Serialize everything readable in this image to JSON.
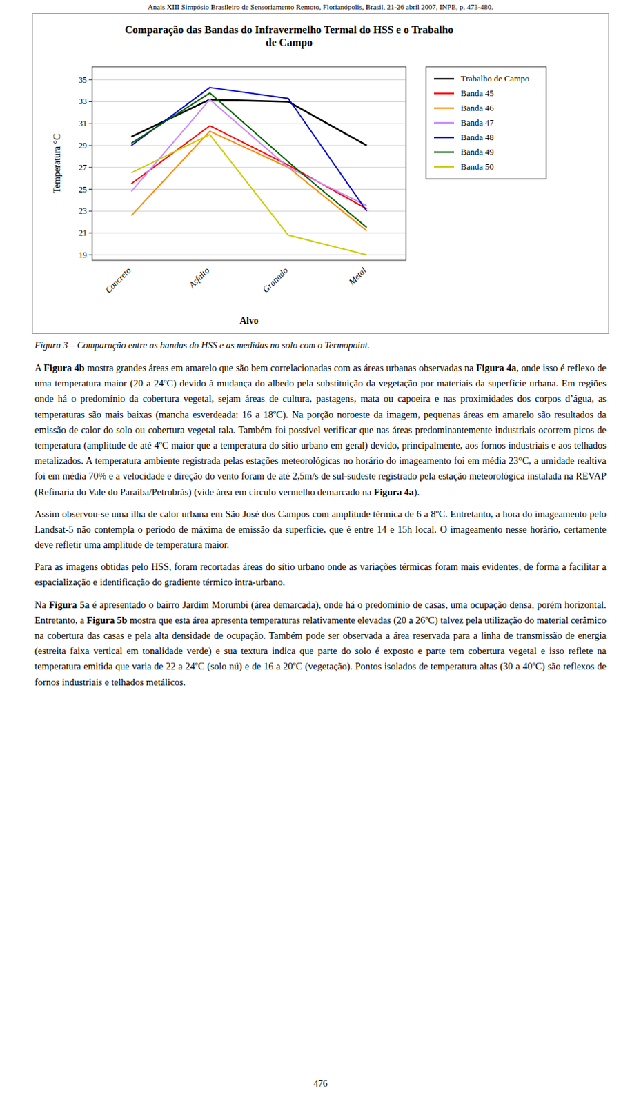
{
  "chart_data": {
    "type": "line",
    "title": "Comparação das Bandas do Infravermelho Termal do HSS e o Trabalho\nde Campo",
    "xlabel": "Alvo",
    "ylabel": "Temperatura °C",
    "categories": [
      "Concreto",
      "Asfalto",
      "Granado",
      "Metal"
    ],
    "series": [
      {
        "name": "Trabalho de Campo",
        "color": "#000000",
        "values": [
          29.8,
          33.2,
          33.0,
          29.0
        ]
      },
      {
        "name": "Banda 45",
        "color": "#FF0000",
        "values": [
          25.5,
          30.8,
          27.2,
          23.2
        ]
      },
      {
        "name": "Banda 46",
        "color": "#FF8C00",
        "values": [
          22.6,
          30.3,
          27.0,
          21.2
        ]
      },
      {
        "name": "Banda 47",
        "color": "#CC88FF",
        "values": [
          24.8,
          33.2,
          27.0,
          23.5
        ]
      },
      {
        "name": "Banda 48",
        "color": "#0000CC",
        "values": [
          29.0,
          34.3,
          33.3,
          23.0
        ]
      },
      {
        "name": "Banda 49",
        "color": "#006400",
        "values": [
          29.2,
          33.8,
          27.5,
          21.5
        ]
      },
      {
        "name": "Banda 50",
        "color": "#CCCC00",
        "values": [
          26.5,
          30.0,
          20.8,
          19.0
        ]
      }
    ],
    "ylim": [
      18.5,
      36.2
    ],
    "yticks": [
      19,
      21,
      23,
      25,
      27,
      29,
      31,
      33,
      35
    ],
    "grid": true,
    "legend": "right"
  },
  "header": "Anais XIII Simpósio Brasileiro de Sensoriamento Remoto, Florianópolis, Brasil, 21-26 abril 2007, INPE, p. 473-480.",
  "caption": "Figura 3 – Comparação entre as bandas do HSS e as medidas no solo com o Termopoint.",
  "paragraphs": [
    [
      {
        "text": "A ",
        "bold": false
      },
      {
        "text": "Figura 4b",
        "bold": true
      },
      {
        "text": " mostra grandes áreas em amarelo que são bem correlacionadas com as áreas urbanas observadas na ",
        "bold": false
      },
      {
        "text": "Figura 4a",
        "bold": true
      },
      {
        "text": ", onde isso é reflexo de uma temperatura maior (20 a 24ºC) devido à mudança do albedo pela substituição da vegetação por materiais da superfície urbana. Em regiões onde há o predomínio da cobertura vegetal, sejam áreas de cultura, pastagens, mata ou capoeira e nas proximidades dos corpos d’água, as temperaturas são mais baixas (mancha esverdeada: 16 a 18ºC). Na porção noroeste da imagem, pequenas áreas em amarelo são resultados da emissão de calor do solo ou cobertura vegetal rala. Também foi possível verificar que nas áreas predominantemente industriais ocorrem picos de temperatura (amplitude de até 4ºC maior que a temperatura do sítio urbano em geral) devido, principalmente, aos fornos industriais e aos telhados metalizados. A temperatura ambiente registrada pelas estações meteorológicas no horário do imageamento foi em média 23°C, a umidade realtiva foi em média 70% e a velocidade e direção do vento foram de até 2,5m/s de sul-sudeste registrado pela estação meteorológica instalada na REVAP (Refinaria do Vale do Paraíba/Petrobrás) (vide área em círculo vermelho demarcado na ",
        "bold": false
      },
      {
        "text": "Figura 4a",
        "bold": true
      },
      {
        "text": ").",
        "bold": false
      }
    ],
    [
      {
        "text": "Assim observou-se uma ilha de calor urbana em São José dos Campos com amplitude térmica de 6 a 8ºC. Entretanto, a hora do imageamento pelo Landsat-5 não contempla o período de máxima de emissão da superfície, que é entre 14 e 15h local. O imageamento nesse horário, certamente deve refletir uma amplitude de temperatura maior.",
        "bold": false
      }
    ],
    [
      {
        "text": "Para as imagens obtidas pelo HSS, foram recortadas áreas do sítio urbano onde as variações térmicas foram mais evidentes, de forma a facilitar a espacialização e identificação do gradiente térmico intra-urbano.",
        "bold": false
      }
    ],
    [
      {
        "text": "Na ",
        "bold": false
      },
      {
        "text": "Figura 5a",
        "bold": true
      },
      {
        "text": " é apresentado o bairro Jardim Morumbi (área demarcada), onde há o predomínio de casas, uma ocupação densa, porém horizontal. Entretanto, a ",
        "bold": false
      },
      {
        "text": "Figura 5b",
        "bold": true
      },
      {
        "text": " mostra que esta área apresenta temperaturas relativamente elevadas (20 a 26ºC) talvez pela utilização do material cerâmico na cobertura das casas e pela alta densidade de ocupação. Também pode ser observada a área reservada para a linha de transmissão de energia (estreita faixa vertical em tonalidade verde) e sua textura indica que parte do solo é exposto e parte tem cobertura vegetal e isso reflete na temperatura emitida que varia de 22 a 24ºC (solo nú) e de 16 a 20ºC (vegetação). Pontos isolados de temperatura altas (30 a 40ºC) são reflexos de fornos industriais e telhados metálicos.",
        "bold": false
      }
    ]
  ],
  "page_number": "476"
}
